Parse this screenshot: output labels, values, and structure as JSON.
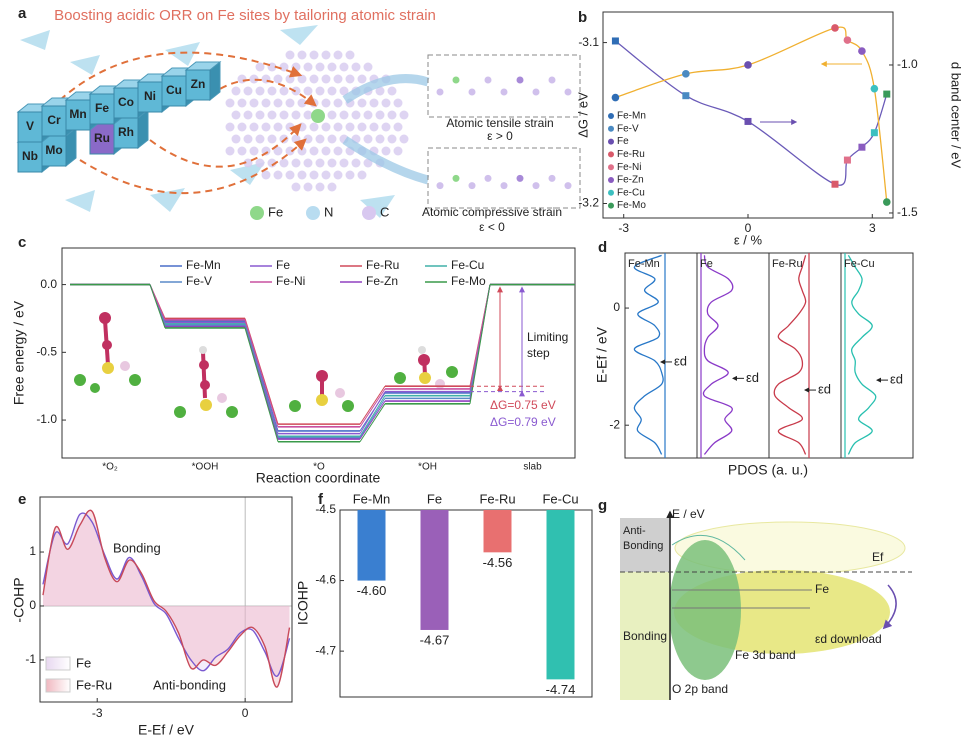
{
  "panels": {
    "a": {
      "letter": "a",
      "title": "Boosting acidic ORR on Fe sites by tailoring atomic strain",
      "elements_top": [
        "V",
        "Cr",
        "Mn",
        "Fe",
        "Co",
        "Ni",
        "Cu",
        "Zn"
      ],
      "elements_bottom": [
        "Nb",
        "Mo",
        "Ru",
        "Rh"
      ],
      "tensile": "Atomic tensile strain",
      "tensile_eps": "ε > 0",
      "compressive": "Atomic compressive strain",
      "compressive_eps": "ε < 0",
      "legend": [
        "Fe",
        "N",
        "C"
      ]
    },
    "g": {
      "letter": "g",
      "axis": "E / eV",
      "anti_bonding": [
        "Anti-",
        "Bonding"
      ],
      "bonding": "Bonding",
      "ef": "Ef",
      "fe": "Fe",
      "ed_download": "εd download",
      "fe3d": "Fe 3d band",
      "o2p": "O 2p band"
    }
  },
  "chart_data": [
    {
      "panel": "b",
      "type": "scatter",
      "categories": [
        "Fe-Mn",
        "Fe-V",
        "Fe",
        "Fe-Ru",
        "Fe-Ni",
        "Fe-Zn",
        "Fe-Cu",
        "Fe-Mo"
      ],
      "colors": [
        "#2f6db5",
        "#4a8ac2",
        "#6a4fb0",
        "#d95a6a",
        "#e0708a",
        "#8a5cc0",
        "#3cc0c0",
        "#3a9a5a"
      ],
      "x": [
        -3.2,
        -1.5,
        0,
        2.1,
        2.4,
        2.75,
        3.05,
        3.35
      ],
      "series": [
        {
          "values": [
            -3.099,
            -3.133,
            -3.149,
            -3.188,
            -3.173,
            -3.165,
            -3.156,
            -3.132
          ],
          "marker": "square",
          "line_color": "#6a5ab8"
        },
        {
          "values": [
            -1.11,
            -1.03,
            -1.0,
            -0.875,
            -0.916,
            -0.953,
            -1.08,
            -1.463
          ],
          "marker": "circle",
          "line_color": "#f0b030",
          "axis": "y2"
        }
      ],
      "xlabel": "ε / %",
      "ylabel": "ΔG / eV",
      "y2label": "d band center / eV",
      "xlim": [
        -3.5,
        3.5
      ],
      "xticks": [
        -3,
        0,
        3
      ],
      "ylim": [
        -3.209,
        -3.081
      ],
      "yticks": [
        -3.1,
        -3.2
      ],
      "y2lim": [
        -1.517,
        -0.821
      ],
      "y2ticks": [
        {
          "value": -1,
          "label": "-1.0"
        },
        -1.5
      ]
    },
    {
      "panel": "c",
      "type": "energy_steps",
      "categories": [
        "*O₂",
        "*OOH",
        "*O",
        "*OH",
        "slab"
      ],
      "series": [
        {
          "name": "Fe-Mn",
          "color": "#4a6fc8",
          "values": [
            0,
            -0.27,
            -1.08,
            -0.8,
            0
          ]
        },
        {
          "name": "Fe",
          "color": "#8a5ad0",
          "values": [
            0,
            -0.28,
            -1.1,
            -0.79,
            0
          ]
        },
        {
          "name": "Fe-Ru",
          "color": "#d04a5a",
          "values": [
            0,
            -0.25,
            -1.03,
            -0.75,
            0
          ]
        },
        {
          "name": "Fe-Cu",
          "color": "#40b0a8",
          "values": [
            0,
            -0.29,
            -1.12,
            -0.82,
            0
          ]
        },
        {
          "name": "Fe-V",
          "color": "#5a8ac8",
          "values": [
            0,
            -0.3,
            -1.13,
            -0.84,
            0
          ]
        },
        {
          "name": "Fe-Ni",
          "color": "#c850a0",
          "values": [
            0,
            -0.26,
            -1.05,
            -0.77,
            0
          ]
        },
        {
          "name": "Fe-Zn",
          "color": "#9040c0",
          "values": [
            0,
            -0.31,
            -1.14,
            -0.86,
            0
          ]
        },
        {
          "name": "Fe-Mo",
          "color": "#3a9a4a",
          "values": [
            0,
            -0.32,
            -1.16,
            -0.88,
            0
          ]
        }
      ],
      "ylim": [
        -1.28,
        0.27
      ],
      "yticks": [
        {
          "value": 0,
          "label": "0.0"
        },
        -0.5,
        {
          "value": -1,
          "label": "-1.0"
        }
      ],
      "xlabel": "Reaction coordinate",
      "ylabel": "Free energy / eV",
      "limiting": [
        "Limiting",
        "step"
      ],
      "dg_labels": [
        "ΔG=0.75 eV",
        "ΔG=0.79 eV"
      ]
    },
    {
      "panel": "d",
      "type": "pdos",
      "energies": [
        0.9,
        0.7,
        0.5,
        0.3,
        0.1,
        -0.1,
        -0.3,
        -0.5,
        -0.7,
        -0.9,
        -1.1,
        -1.3,
        -1.5,
        -1.7,
        -1.9,
        -2.1,
        -2.3,
        -2.5
      ],
      "series": [
        {
          "name": "Fe-Mn",
          "color": "#2878c8",
          "values": [
            0.1,
            0.9,
            0.3,
            0.6,
            0.2,
            0.8,
            0.3,
            0.2,
            0.9,
            0.3,
            0.1,
            0.1,
            0.6,
            0.9,
            0.7,
            0.8,
            0.3,
            0.1
          ],
          "ed": -0.92,
          "ed_label": "εd"
        },
        {
          "name": "Fe",
          "color": "#8a3ac8",
          "values": [
            0.1,
            0.2,
            0.8,
            0.9,
            0.3,
            0.2,
            0.5,
            0.2,
            0.1,
            0.2,
            0.8,
            0.3,
            0.1,
            0.9,
            0.7,
            0.9,
            0.4,
            0.1
          ],
          "ed": -1.2,
          "ed_label": "εd"
        },
        {
          "name": "Fe-Ru",
          "color": "#c83a4a",
          "values": [
            0.1,
            0.2,
            0.3,
            0.2,
            0.1,
            0.3,
            0.6,
            0.9,
            0.4,
            0.2,
            0.3,
            0.9,
            1.0,
            0.6,
            0.2,
            0.9,
            0.3,
            0.1
          ],
          "ed": -1.4,
          "ed_label": "εd"
        },
        {
          "name": "Fe-Cu",
          "color": "#28c0b0",
          "values": [
            0.1,
            0.3,
            0.5,
            0.4,
            0.2,
            0.4,
            0.8,
            0.5,
            0.2,
            0.3,
            0.3,
            0.5,
            0.9,
            0.7,
            0.4,
            0.8,
            0.3,
            0.1
          ],
          "ed": -1.23,
          "ed_label": "εd"
        }
      ],
      "ylim": [
        -2.56,
        0.94
      ],
      "yticks": [
        0,
        -2
      ],
      "ylabel": "E-Ef / eV",
      "xlabel": "PDOS (a. u.)"
    },
    {
      "panel": "e",
      "type": "line",
      "x": [
        -4.1,
        -3.85,
        -3.6,
        -3.35,
        -3.1,
        -2.85,
        -2.6,
        -2.35,
        -2.1,
        -1.85,
        -1.6,
        -1.35,
        -1.1,
        -0.85,
        -0.6,
        -0.35,
        -0.1,
        0.15,
        0.4,
        0.65,
        0.9
      ],
      "series": [
        {
          "name": "Fe",
          "color": "#7a5ad0",
          "values": [
            0.4,
            1.35,
            1.15,
            1.7,
            1.55,
            0.95,
            0.5,
            0.9,
            0.55,
            0.05,
            -0.15,
            -0.6,
            -1.0,
            -1.2,
            -0.95,
            -0.8,
            -0.5,
            -0.45,
            -0.85,
            -1.3,
            -0.6
          ]
        },
        {
          "name": "Fe-Ru",
          "color": "#c84a5a",
          "values": [
            0.2,
            1.45,
            1.05,
            1.5,
            1.75,
            0.9,
            0.45,
            0.85,
            0.6,
            0.1,
            -0.1,
            -0.5,
            -1.15,
            -1.0,
            -1.1,
            -0.85,
            -0.55,
            -0.4,
            -0.75,
            -1.5,
            -0.4
          ]
        }
      ],
      "xlim": [
        -4.16,
        0.95
      ],
      "xticks": [
        -3,
        0
      ],
      "ylim": [
        -1.78,
        2.02
      ],
      "yticks": [
        1,
        0,
        -1
      ],
      "xlabel": "E-Ef / eV",
      "ylabel": "-COHP",
      "annotations": [
        "Bonding",
        "Anti-bonding"
      ]
    },
    {
      "panel": "f",
      "type": "bar",
      "categories": [
        "Fe-Mn",
        "Fe",
        "Fe-Ru",
        "Fe-Cu"
      ],
      "values": [
        -4.6,
        -4.67,
        -4.56,
        -4.74
      ],
      "value_labels": [
        "-4.60",
        "-4.67",
        "-4.56",
        "-4.74"
      ],
      "colors": [
        "#3a7fd0",
        "#9a60b8",
        "#e87070",
        "#30c0b0"
      ],
      "ylim": [
        -4.765,
        -4.5
      ],
      "yticks": [
        -4.5,
        -4.6,
        -4.7
      ],
      "ylabel": "ICOHP"
    }
  ]
}
